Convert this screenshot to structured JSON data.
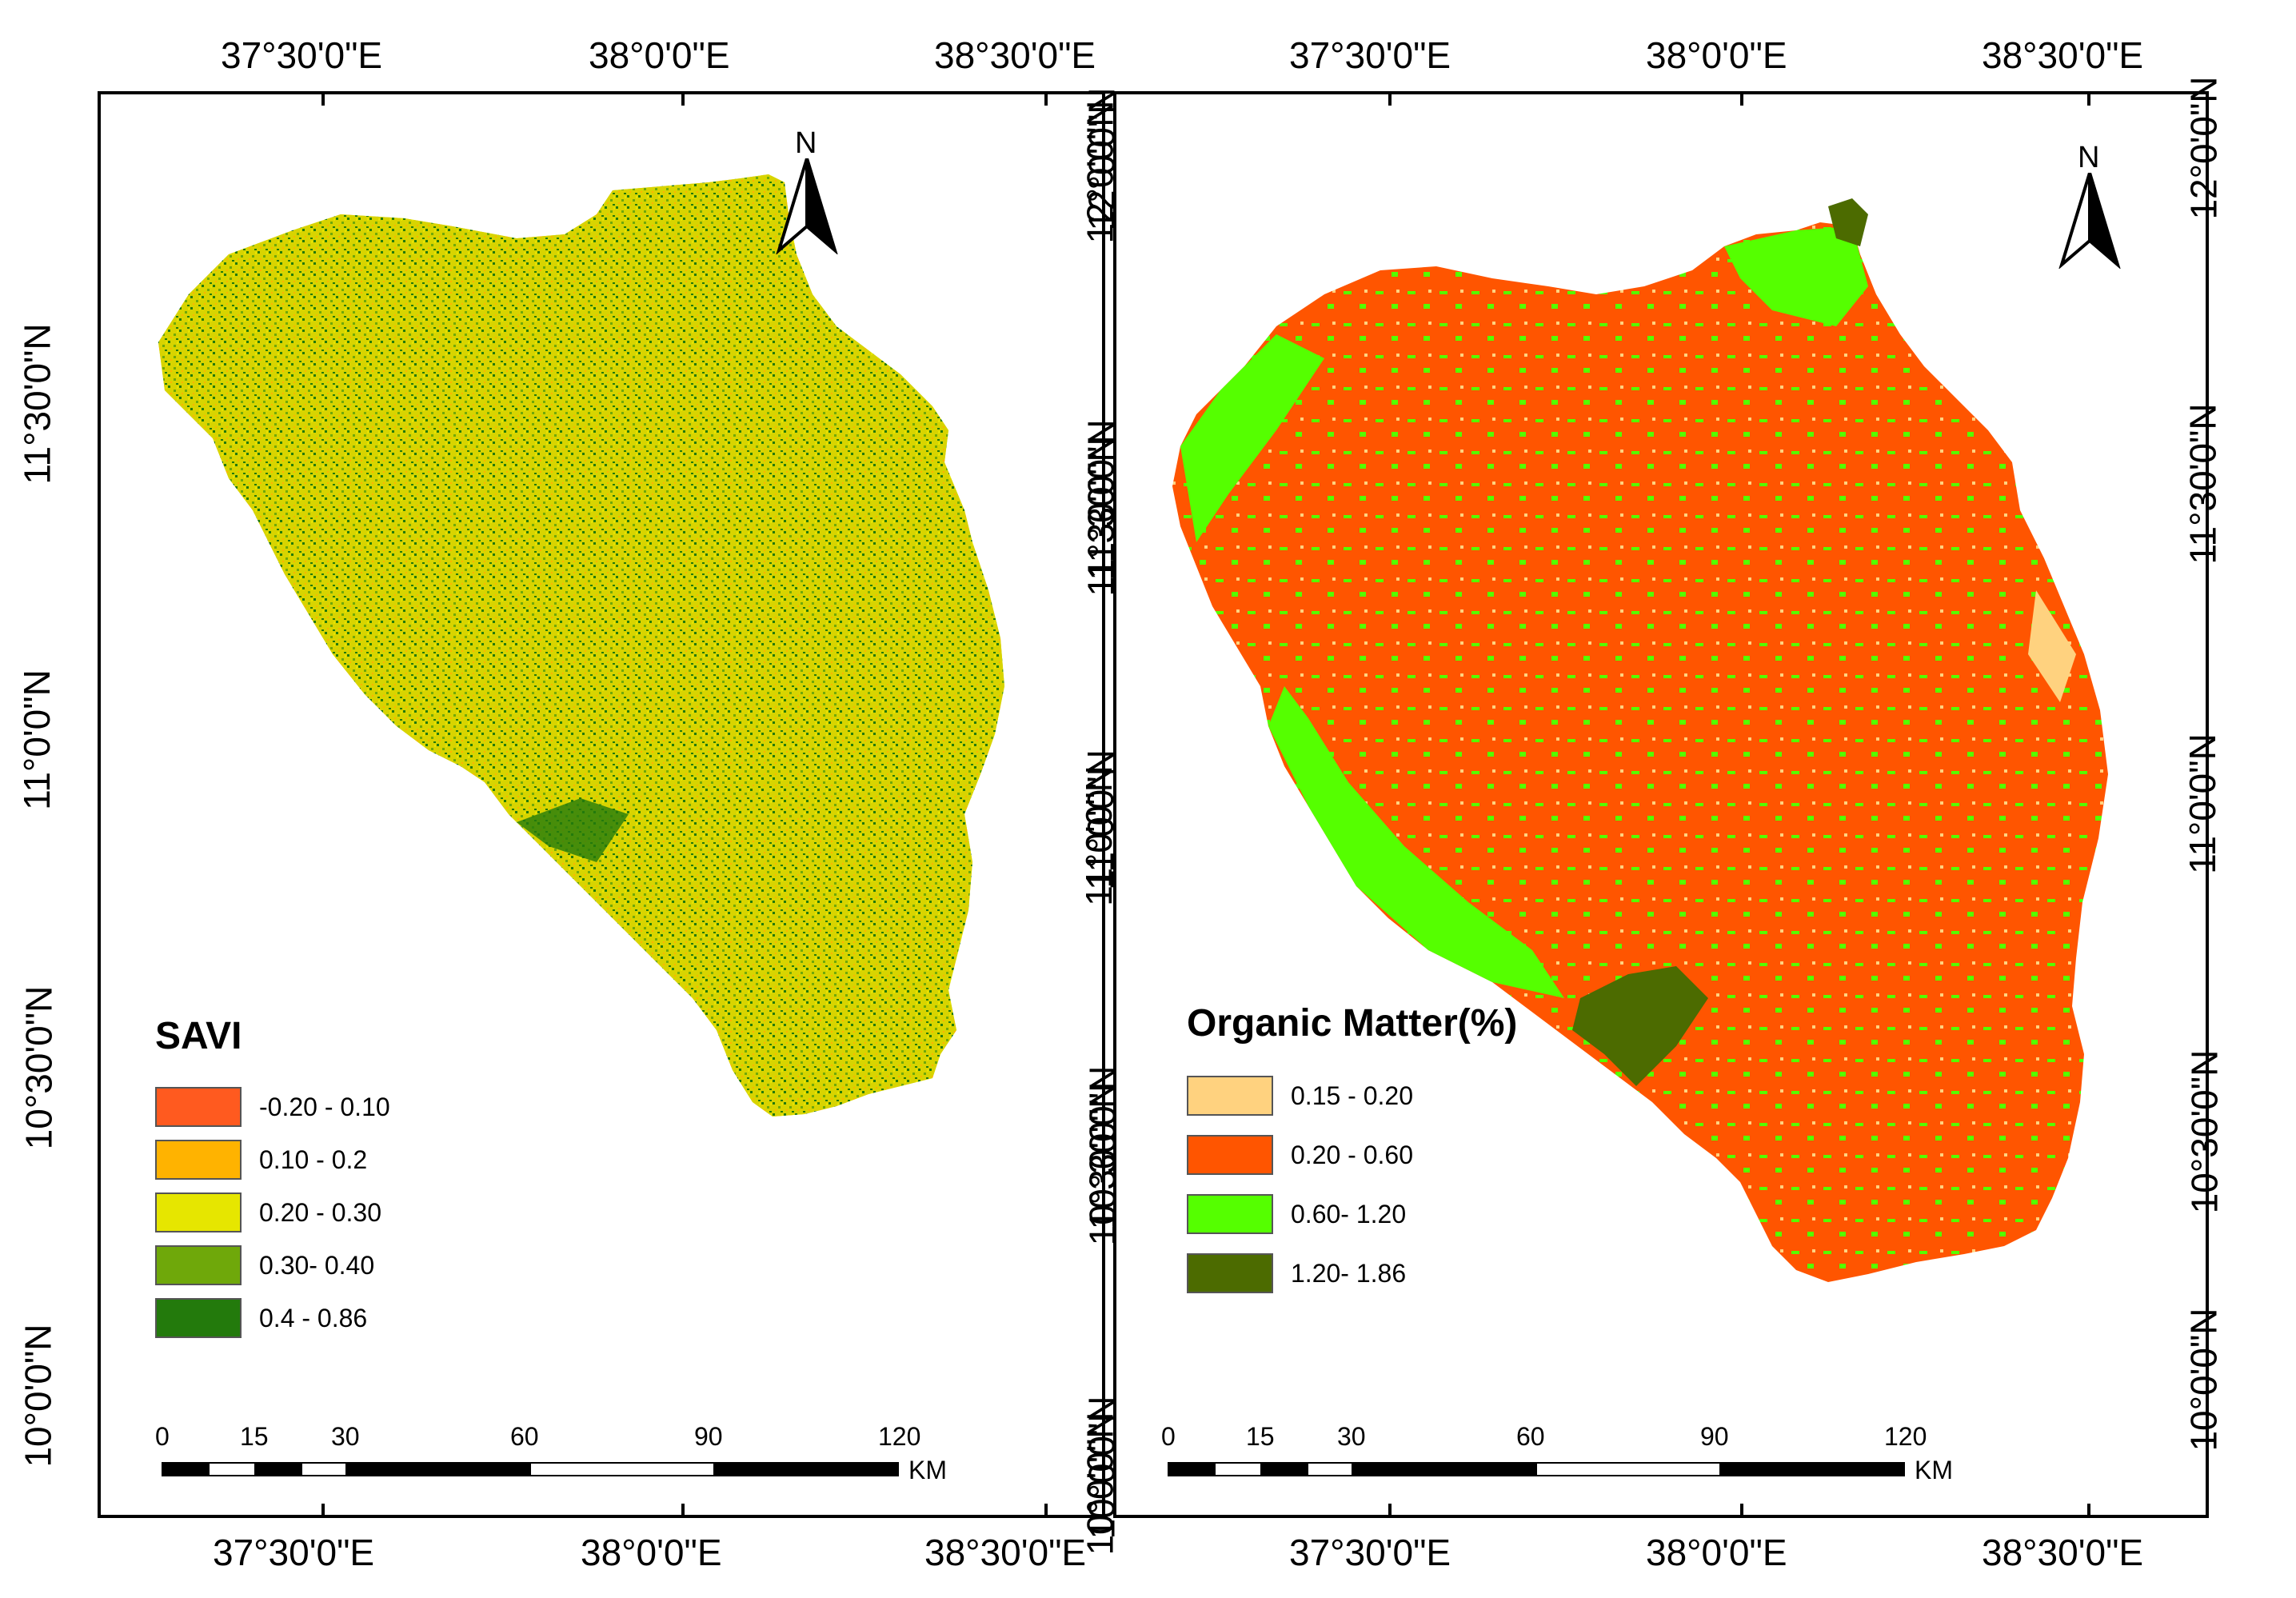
{
  "left_map": {
    "top_lon_labels": [
      "37°30'0\"E",
      "38°0'0\"E",
      "38°30'0\"E"
    ],
    "bottom_lon_labels": [
      "37°30'0\"E",
      "38°0'0\"E",
      "38°30'0\"E"
    ],
    "left_lat_labels": [
      "11°30'0\"N",
      "11°0'0\"N",
      "10°30'0\"N",
      "10°0'0\"N"
    ],
    "right_lat_labels": [
      "12°0'0\"N",
      "11°30'0\"N",
      "11°0'0\"N",
      "10°30'0\"N",
      "10°0'0\"N"
    ],
    "north_label": "N",
    "legend": {
      "title": "SAVI",
      "items": [
        {
          "label": "-0.20 - 0.10",
          "color": "#ff5a1f"
        },
        {
          "label": "0.10 - 0.2",
          "color": "#ffb300"
        },
        {
          "label": "0.20 - 0.30",
          "color": "#e6e600"
        },
        {
          "label": "0.30- 0.40",
          "color": "#6fa80a"
        },
        {
          "label": "0.4 - 0.86",
          "color": "#237a0c"
        }
      ]
    },
    "scale": {
      "ticks": [
        "0",
        "15",
        "30",
        "60",
        "90",
        "120"
      ],
      "unit": "KM"
    }
  },
  "right_map": {
    "top_lon_labels": [
      "37°30'0\"E",
      "38°0'0\"E",
      "38°30'0\"E"
    ],
    "bottom_lon_labels": [
      "37°30'0\"E",
      "38°0'0\"E",
      "38°30'0\"E"
    ],
    "left_lat_labels": [
      "12°0'0\"N",
      "11°30'0\"N",
      "11°0'0\"N",
      "10°30'0\"N",
      "10°0'0\"N"
    ],
    "right_lat_labels": [
      "12°0'0\"N",
      "11°30'0\"N",
      "11°0'0\"N",
      "10°30'0\"N",
      "10°0'0\"N"
    ],
    "north_label": "N",
    "legend": {
      "title": "Organic Matter(%)",
      "items": [
        {
          "label": "0.15 - 0.20",
          "color": "#ffd27f"
        },
        {
          "label": "0.20 - 0.60",
          "color": "#ff5500"
        },
        {
          "label": "0.60- 1.20",
          "color": "#55ff00"
        },
        {
          "label": "1.20- 1.86",
          "color": "#4c6b00"
        }
      ]
    },
    "scale": {
      "ticks": [
        "0",
        "15",
        "30",
        "60",
        "90",
        "120"
      ],
      "unit": "KM"
    }
  }
}
